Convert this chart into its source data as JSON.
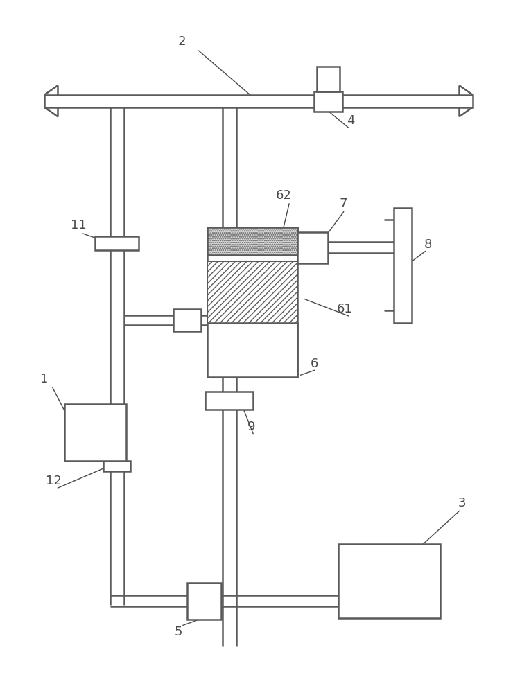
{
  "bg_color": "#ffffff",
  "line_color": "#5a5a5a",
  "lw": 1.8,
  "fig_w": 7.4,
  "fig_h": 10.0
}
